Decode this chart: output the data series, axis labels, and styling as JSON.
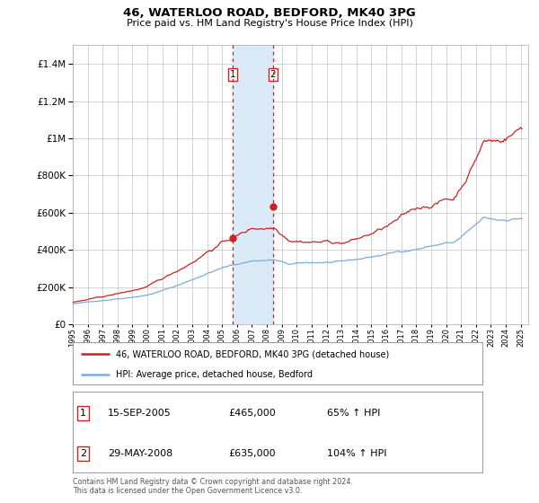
{
  "title": "46, WATERLOO ROAD, BEDFORD, MK40 3PG",
  "subtitle": "Price paid vs. HM Land Registry's House Price Index (HPI)",
  "ylim": [
    0,
    1500000
  ],
  "yticks": [
    0,
    200000,
    400000,
    600000,
    800000,
    1000000,
    1200000,
    1400000
  ],
  "ytick_labels": [
    "£0",
    "£200K",
    "£400K",
    "£600K",
    "£800K",
    "£1M",
    "£1.2M",
    "£1.4M"
  ],
  "hpi_color": "#7aacdc",
  "property_color": "#cc2222",
  "sale1_x": 2005.71,
  "sale2_x": 2008.41,
  "sale1_price": 465000,
  "sale2_price": 635000,
  "shade_color": "#dbeaf7",
  "legend_property": "46, WATERLOO ROAD, BEDFORD, MK40 3PG (detached house)",
  "legend_hpi": "HPI: Average price, detached house, Bedford",
  "table_row1": [
    "1",
    "15-SEP-2005",
    "£465,000",
    "65% ↑ HPI"
  ],
  "table_row2": [
    "2",
    "29-MAY-2008",
    "£635,000",
    "104% ↑ HPI"
  ],
  "footnote1": "Contains HM Land Registry data © Crown copyright and database right 2024.",
  "footnote2": "This data is licensed under the Open Government Licence v3.0.",
  "bg_color": "#ffffff",
  "grid_color": "#cccccc",
  "xmin": 1995,
  "xmax": 2025.5
}
